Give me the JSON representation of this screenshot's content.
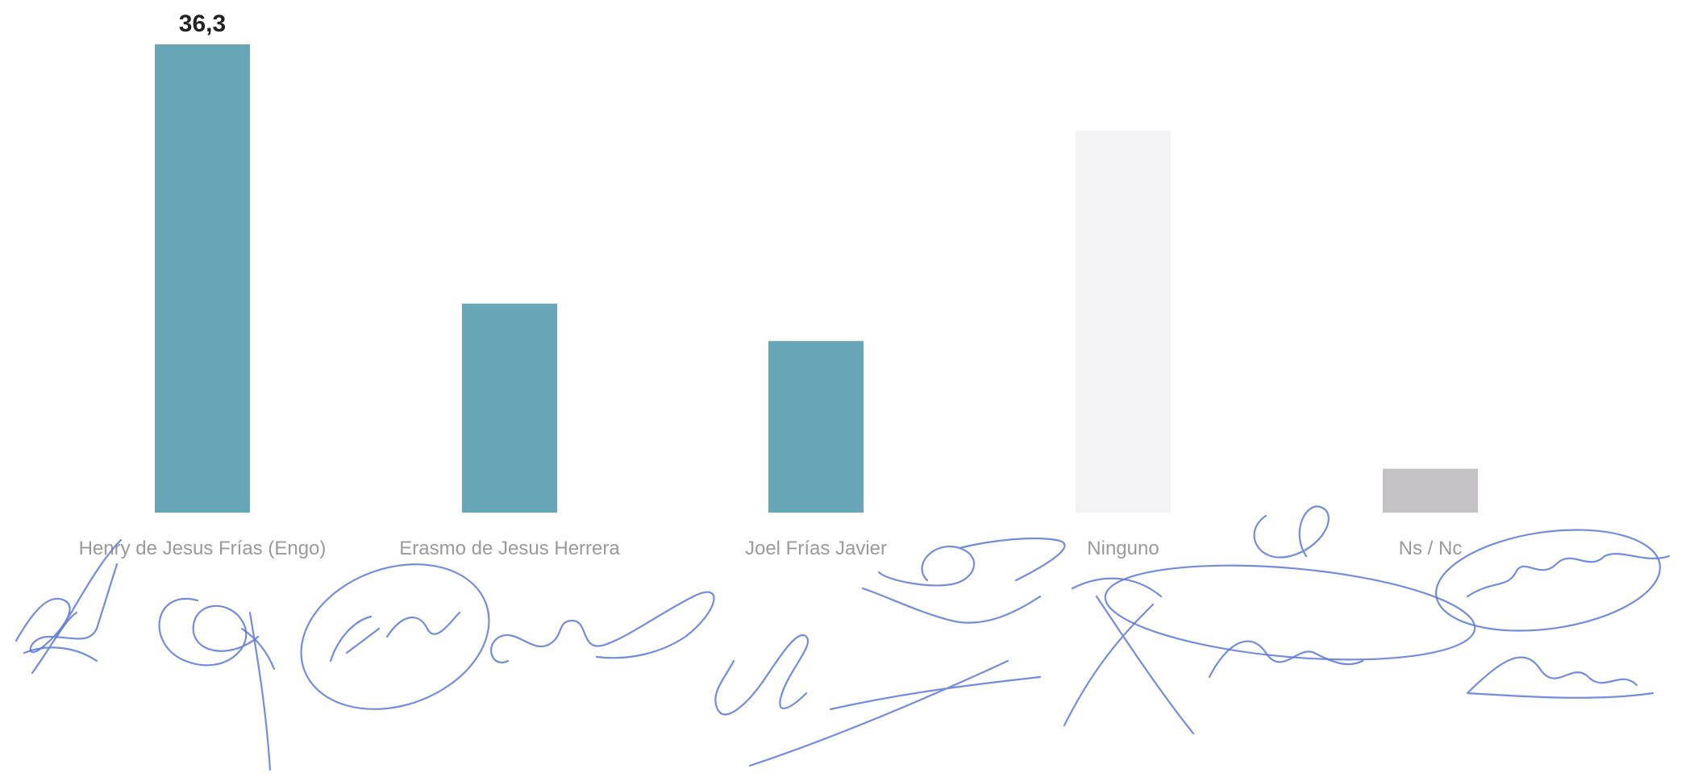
{
  "chart_data": {
    "type": "bar",
    "categories": [
      "Henry de Jesus Frías (Engo)",
      "Erasmo de Jesus Herrera",
      "Joel Frías Javier",
      "Ninguno",
      "Ns / Nc"
    ],
    "values": [
      36.3,
      16.2,
      13.3,
      29.6,
      3.4
    ],
    "data_labels": [
      "36,3",
      "",
      "",
      "",
      ""
    ],
    "ylim": [
      0,
      36.3
    ],
    "colors": [
      "#66a6b6",
      "#66a6b6",
      "#66a6b6",
      "#f4f4f6",
      "#c5c2c6"
    ],
    "grid": false,
    "legend": "none"
  }
}
